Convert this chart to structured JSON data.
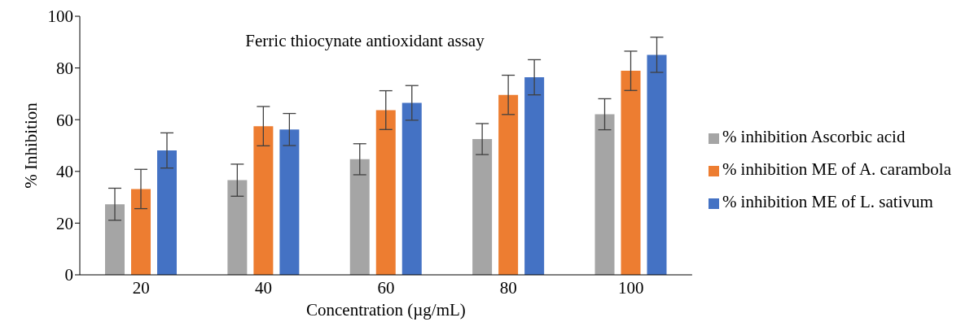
{
  "chart_data": {
    "type": "bar",
    "title": "Ferric thiocynate antioxidant assay",
    "xlabel": "Concentration (µg/mL)",
    "ylabel": "% Inhibition",
    "categories": [
      "20",
      "40",
      "60",
      "80",
      "100"
    ],
    "series": [
      {
        "name": "% inhibition Ascorbic acid",
        "color": "#a5a5a5",
        "values": [
          27.3,
          36.6,
          44.7,
          52.5,
          62.1
        ],
        "errors": [
          6.2,
          6.2,
          6,
          6,
          6
        ]
      },
      {
        "name": "% inhibition ME of A. carambola",
        "color": "#ed7d31",
        "values": [
          33.2,
          57.5,
          63.7,
          69.6,
          78.9
        ],
        "errors": [
          7.6,
          7.6,
          7.5,
          7.6,
          7.6
        ]
      },
      {
        "name": "% inhibition ME of L. sativum",
        "color": "#4472c4",
        "values": [
          48.1,
          56.2,
          66.5,
          76.4,
          85.1
        ],
        "errors": [
          6.8,
          6.2,
          6.7,
          6.8,
          6.8
        ]
      }
    ],
    "ylim": [
      0,
      100
    ],
    "yticks": [
      0,
      20,
      40,
      60,
      80,
      100
    ],
    "grid": false,
    "legend": "right"
  }
}
